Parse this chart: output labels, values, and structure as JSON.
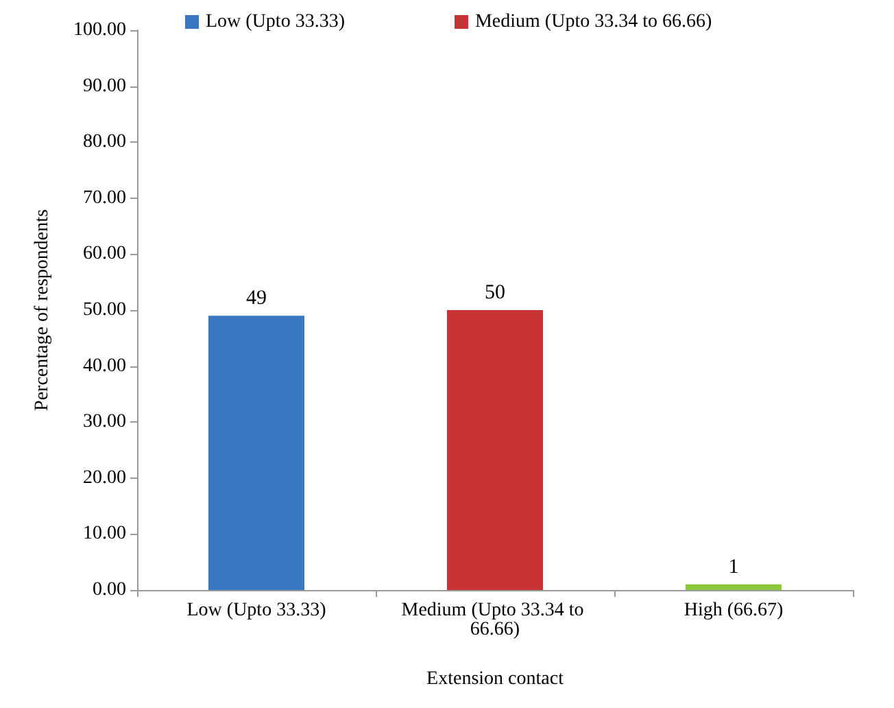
{
  "chart_data": {
    "type": "bar",
    "xlabel": "Extension contact",
    "ylabel": "Percentage of respondents",
    "categories": [
      "Low (Upto 33.33)",
      "Medium (Upto 33.34 to 66.66)",
      "High (66.67)"
    ],
    "series": [
      {
        "name": "Low (Upto 33.33)",
        "color": "#3a78c4",
        "values": [
          49,
          null,
          null
        ]
      },
      {
        "name": "Medium (Upto 33.34 to 66.66)",
        "color": "#c83434",
        "values": [
          null,
          50,
          null
        ]
      },
      {
        "color": "#8cc63a",
        "values": [
          null,
          null,
          1
        ]
      }
    ],
    "ylim": [
      0,
      100
    ],
    "yticks": [
      {
        "value": 0,
        "label": "0.00"
      },
      {
        "value": 10,
        "label": "10.00"
      },
      {
        "value": 20,
        "label": "20.00"
      },
      {
        "value": 30,
        "label": "30.00"
      },
      {
        "value": 40,
        "label": "40.00"
      },
      {
        "value": 50,
        "label": "50.00"
      },
      {
        "value": 60,
        "label": "60.00"
      },
      {
        "value": 70,
        "label": "70.00"
      },
      {
        "value": 80,
        "label": "80.00"
      },
      {
        "value": 90,
        "label": "90.00"
      },
      {
        "value": 100,
        "label": "100.00"
      }
    ],
    "data_labels": true,
    "grid": false,
    "legend": "top"
  }
}
